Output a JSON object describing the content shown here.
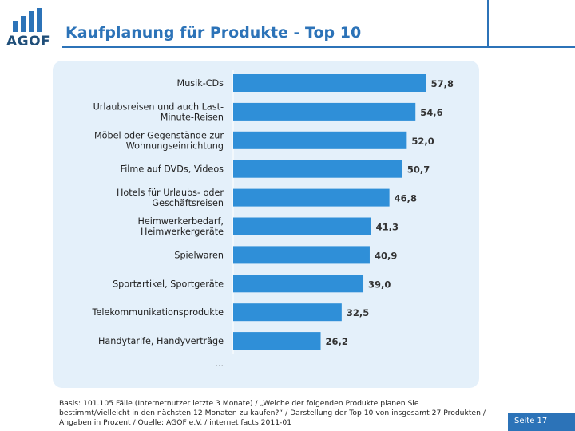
{
  "header": {
    "logo_text": "AGOF",
    "title": "Kaufplanung für Produkte - Top 10"
  },
  "colors": {
    "accent": "#2c73b8",
    "bar": "#2f8fd8",
    "panel": "#e4f0fa",
    "page_box": "#2c73b8"
  },
  "chart_data": {
    "type": "bar",
    "orientation": "horizontal",
    "categories": [
      "Musik-CDs",
      "Urlaubsreisen und auch Last-\nMinute-Reisen",
      "Möbel oder Gegenstände zur\nWohnungseinrichtung",
      "Filme auf DVDs, Videos",
      "Hotels für Urlaubs- oder\nGeschäftsreisen",
      "Heimwerkerbedarf,\nHeimwerkergeräte",
      "Spielwaren",
      "Sportartikel, Sportgeräte",
      "Telekommunikationsprodukte",
      "Handytarife, Handyverträge"
    ],
    "values": [
      57.8,
      54.6,
      52.0,
      50.7,
      46.8,
      41.3,
      40.9,
      39.0,
      32.5,
      26.2
    ],
    "value_labels": [
      "57,8",
      "54,6",
      "52,0",
      "50,7",
      "46,8",
      "41,3",
      "40,9",
      "39,0",
      "32,5",
      "26,2"
    ],
    "ellipsis": "...",
    "xlim": [
      0,
      60
    ],
    "grid": false,
    "legend": "none"
  },
  "footer": {
    "source": "Basis: 101.105 Fälle (Internetnutzer letzte 3 Monate) / „Welche der folgenden Produkte planen Sie bestimmt/vielleicht in den nächsten 12 Monaten zu kaufen?“ / Darstellung der Top 10 von insgesamt 27 Produkten / Angaben in Prozent / Quelle: AGOF e.V. / internet facts 2011-01",
    "page": "Seite 17"
  }
}
